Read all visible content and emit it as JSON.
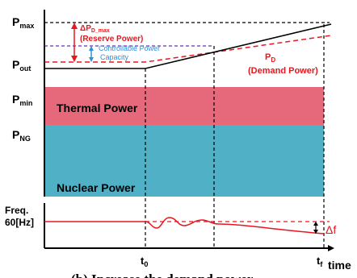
{
  "y_labels": {
    "p_max": "P",
    "p_max_sub": "max",
    "p_out": "P",
    "p_out_sub": "out",
    "p_min": "P",
    "p_min_sub": "min",
    "p_ng": "P",
    "p_ng_sub": "NG"
  },
  "bands": {
    "thermal": "Thermal Power",
    "nuclear": "Nuclear Power"
  },
  "annotations": {
    "delta_p": "ΔP",
    "delta_p_sub": "D_max",
    "reserve_power": "(Reserve Power)",
    "controllable_line1": "Controllable Power",
    "controllable_line2": "Capacity",
    "pd": "P",
    "pd_sub": "D",
    "demand_power": "(Demand Power)",
    "delta_f": "Δf"
  },
  "freq_panel": {
    "label_line1": "Freq.",
    "label_line2": "60[Hz]"
  },
  "x_axis": {
    "t0": "t",
    "t0_sub": "0",
    "tf": "t",
    "tf_sub": "f",
    "time": "time"
  },
  "caption": "(b) Increase the demand power",
  "colors": {
    "thermal": "#e5697b",
    "nuclear": "#4fb0c6",
    "red": "#e8161e",
    "blue": "#2f8fd8",
    "purple": "#6a2fb8",
    "black": "#000000"
  }
}
